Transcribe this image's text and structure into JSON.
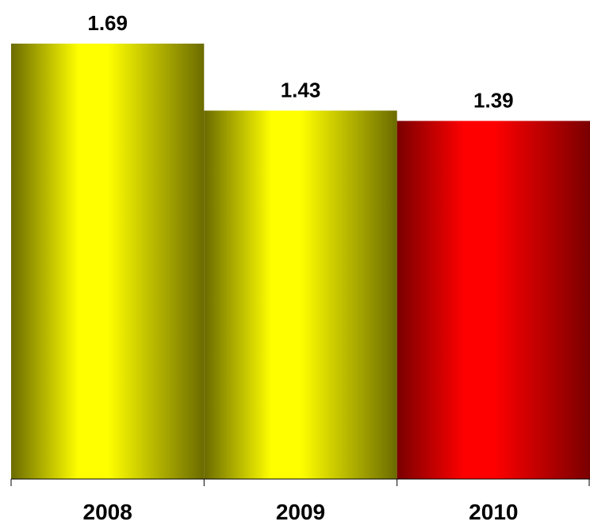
{
  "chart_data": {
    "type": "bar",
    "categories": [
      "2008",
      "2009",
      "2010"
    ],
    "values": [
      1.69,
      1.43,
      1.39
    ],
    "data_labels": [
      "1.69",
      "1.43",
      "1.39"
    ],
    "ylim": [
      0,
      1.69
    ],
    "grid": false,
    "legend": "none",
    "bar_colors": [
      "#ffff00",
      "#ffff00",
      "#ff0000"
    ],
    "bar_shade_colors": [
      "#6b6b00",
      "#6b6b00",
      "#7a0000"
    ]
  }
}
